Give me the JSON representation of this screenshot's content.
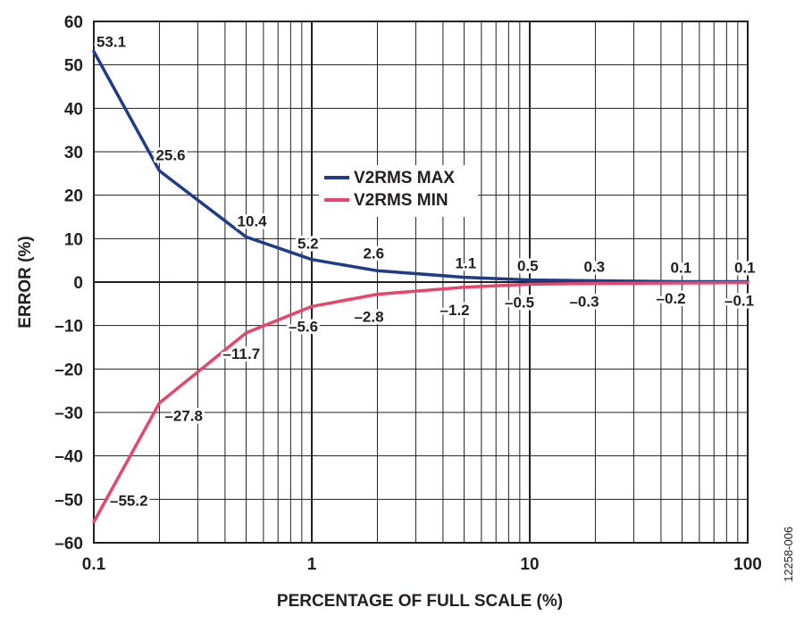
{
  "figure_id": "12258-006",
  "chart_data": {
    "type": "line",
    "xlabel": "PERCENTAGE OF FULL SCALE (%)",
    "ylabel": "ERROR (%)",
    "xscale": "log",
    "xlim": [
      0.1,
      100
    ],
    "ylim": [
      -60,
      60
    ],
    "x_ticks": [
      "0.1",
      "1",
      "10",
      "100"
    ],
    "y_ticks": [
      "60",
      "50",
      "40",
      "30",
      "20",
      "10",
      "0",
      "–10",
      "–20",
      "–30",
      "–40",
      "–50",
      "–60"
    ],
    "grid": true,
    "legend_position": "center",
    "series": [
      {
        "name": "V2RMS MAX",
        "color": "#1f3c88",
        "x": [
          0.1,
          0.2,
          0.5,
          1,
          2,
          5,
          10,
          20,
          50,
          100
        ],
        "values": [
          53.1,
          25.6,
          10.4,
          5.2,
          2.6,
          1.1,
          0.5,
          0.3,
          0.1,
          0.1
        ],
        "labels": [
          "53.1",
          "25.6",
          "10.4",
          "5.2",
          "2.6",
          "1.1",
          "0.5",
          "0.3",
          "0.1",
          "0.1"
        ]
      },
      {
        "name": "V2RMS MIN",
        "color": "#e8456a",
        "x": [
          0.1,
          0.2,
          0.5,
          1,
          2,
          5,
          10,
          20,
          50,
          100
        ],
        "values": [
          -55.2,
          -27.8,
          -11.7,
          -5.6,
          -2.8,
          -1.2,
          -0.5,
          -0.3,
          -0.2,
          -0.1
        ],
        "labels": [
          "–55.2",
          "–27.8",
          "–11.7",
          "–5.6",
          "–2.8",
          "–1.2",
          "–0.5",
          "–0.3",
          "–0.2",
          "–0.1"
        ]
      }
    ]
  }
}
